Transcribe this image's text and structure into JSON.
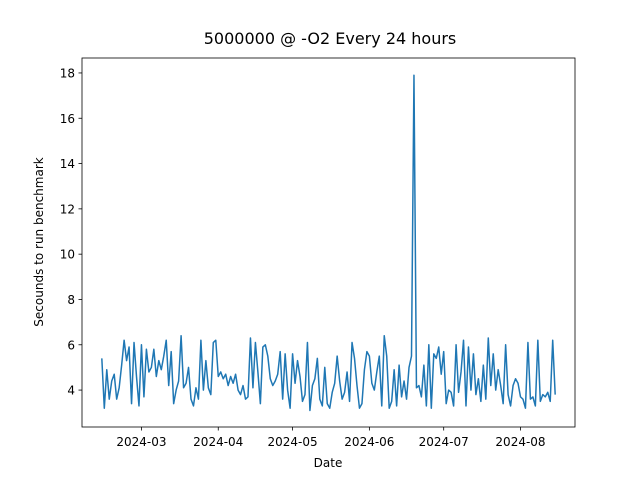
{
  "chart_data": {
    "type": "line",
    "title": "5000000 @ -O2 Every 24 hours",
    "xlabel": "Date",
    "ylabel": "Secounds to run benchmark",
    "color": "#1f77b4",
    "values": [
      5.4,
      3.2,
      4.9,
      3.6,
      4.4,
      4.7,
      3.6,
      4.1,
      5.1,
      6.2,
      5.3,
      5.9,
      3.4,
      6.1,
      4.6,
      3.3,
      6.0,
      3.7,
      5.8,
      4.8,
      5.0,
      5.8,
      4.6,
      5.3,
      4.9,
      5.5,
      6.2,
      4.2,
      5.7,
      3.4,
      4.0,
      4.4,
      6.4,
      4.1,
      4.3,
      5.0,
      3.6,
      3.3,
      4.1,
      3.6,
      6.2,
      4.0,
      5.3,
      4.1,
      3.8,
      6.1,
      6.2,
      4.6,
      4.8,
      4.5,
      4.7,
      4.2,
      4.6,
      4.3,
      4.7,
      4.0,
      3.8,
      4.2,
      3.6,
      3.7,
      6.3,
      4.1,
      6.1,
      4.8,
      3.4,
      5.9,
      6.0,
      5.5,
      4.5,
      4.2,
      4.4,
      4.7,
      5.7,
      3.6,
      5.6,
      4.0,
      3.2,
      5.6,
      4.3,
      5.3,
      4.6,
      3.5,
      3.8,
      6.1,
      3.1,
      4.2,
      4.5,
      5.4,
      3.6,
      3.3,
      5.0,
      3.4,
      3.2,
      3.9,
      4.3,
      5.5,
      4.4,
      3.6,
      3.9,
      4.8,
      3.5,
      6.1,
      5.4,
      4.2,
      3.2,
      3.4,
      4.9,
      5.7,
      5.5,
      4.3,
      4.0,
      4.8,
      5.5,
      3.3,
      6.4,
      5.5,
      3.2,
      3.5,
      4.9,
      3.3,
      5.1,
      3.7,
      4.4,
      3.6,
      5.0,
      5.5,
      17.9,
      4.1,
      4.2,
      3.7,
      5.1,
      3.3,
      6.0,
      3.2,
      5.6,
      5.4,
      5.9,
      4.7,
      5.7,
      3.4,
      4.0,
      3.9,
      3.3,
      6.0,
      3.9,
      4.8,
      6.2,
      3.3,
      5.9,
      4.0,
      5.6,
      3.8,
      4.5,
      3.5,
      5.1,
      3.6,
      6.3,
      4.2,
      5.6,
      4.0,
      4.9,
      4.2,
      3.4,
      6.0,
      3.8,
      3.3,
      4.2,
      4.5,
      4.3,
      3.7,
      3.6,
      3.2,
      6.1,
      3.6,
      3.7,
      3.3,
      6.2,
      3.5,
      3.8,
      3.7,
      3.9,
      3.5,
      6.2,
      3.8
    ],
    "xlim": [
      -8,
      191
    ],
    "xticks": [
      {
        "value": 16,
        "label": "2024-03"
      },
      {
        "value": 47,
        "label": "2024-04"
      },
      {
        "value": 77,
        "label": "2024-05"
      },
      {
        "value": 108,
        "label": "2024-06"
      },
      {
        "value": 138,
        "label": "2024-07"
      },
      {
        "value": 169,
        "label": "2024-08"
      }
    ],
    "ylim": [
      2.37,
      18.66
    ],
    "yticks": [
      4,
      6,
      8,
      10,
      12,
      14,
      16,
      18
    ]
  }
}
